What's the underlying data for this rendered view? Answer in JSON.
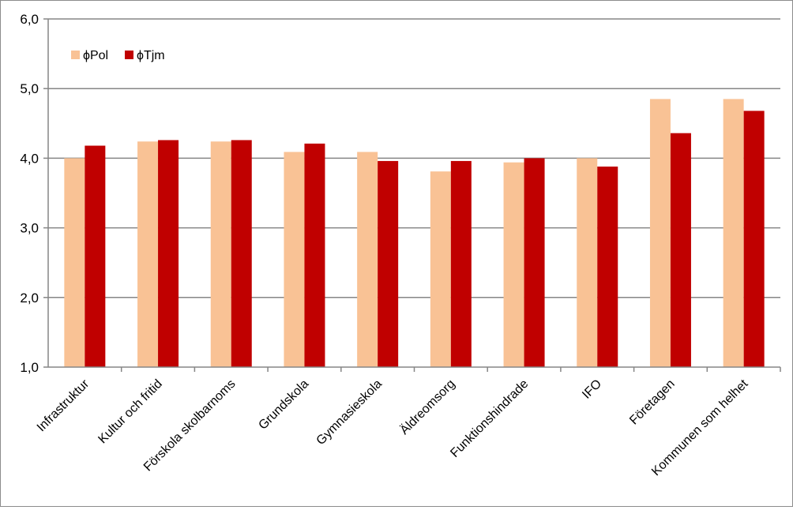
{
  "chart_data": {
    "type": "bar",
    "title": "",
    "xlabel": "",
    "ylabel": "",
    "ylim": [
      1.0,
      6.0
    ],
    "yticks": [
      "1,0",
      "2,0",
      "3,0",
      "4,0",
      "5,0",
      "6,0"
    ],
    "grid": true,
    "legend_position": "top-left",
    "categories": [
      "Infrastruktur",
      "Kultur och fritid",
      "Förskola skolbarnoms",
      "Grundskola",
      "Gymnasieskola",
      "Äldreomsorg",
      "Funktionshindrade",
      "IFO",
      "Företagen",
      "Kommunen som helhet"
    ],
    "series": [
      {
        "name": "ϕPol",
        "color": "#f9c295",
        "values": [
          4.0,
          4.24,
          4.24,
          4.09,
          4.09,
          3.81,
          3.94,
          4.0,
          4.85,
          4.85
        ]
      },
      {
        "name": "ϕTjm",
        "color": "#c00000",
        "values": [
          4.18,
          4.26,
          4.26,
          4.21,
          3.96,
          3.96,
          4.0,
          3.88,
          4.36,
          4.68
        ]
      }
    ]
  }
}
